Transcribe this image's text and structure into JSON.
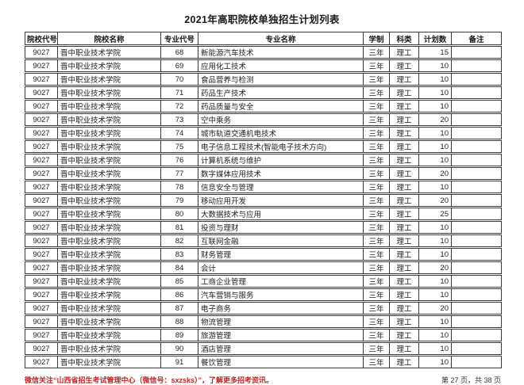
{
  "title": "2021年高职院校单独招生计划列表",
  "table": {
    "headers": [
      "院校代号",
      "院校名称",
      "专业代号",
      "专业名称",
      "学制",
      "科类",
      "计划数",
      "备注"
    ],
    "rows": [
      [
        "9027",
        "晋中职业技术学院",
        "68",
        "新能源汽车技术",
        "三年",
        "理工",
        "15",
        ""
      ],
      [
        "9027",
        "晋中职业技术学院",
        "69",
        "应用化工技术",
        "三年",
        "理工",
        "10",
        ""
      ],
      [
        "9027",
        "晋中职业技术学院",
        "70",
        "食品营养与检测",
        "三年",
        "理工",
        "10",
        ""
      ],
      [
        "9027",
        "晋中职业技术学院",
        "71",
        "药品生产技术",
        "三年",
        "理工",
        "10",
        ""
      ],
      [
        "9027",
        "晋中职业技术学院",
        "72",
        "药品质量与安全",
        "三年",
        "理工",
        "10",
        ""
      ],
      [
        "9027",
        "晋中职业技术学院",
        "73",
        "空中乘务",
        "三年",
        "理工",
        "20",
        ""
      ],
      [
        "9027",
        "晋中职业技术学院",
        "74",
        "城市轨道交通机电技术",
        "三年",
        "理工",
        "10",
        ""
      ],
      [
        "9027",
        "晋中职业技术学院",
        "75",
        "电子信息工程技术(智能电子技术方向)",
        "三年",
        "理工",
        "10",
        ""
      ],
      [
        "9027",
        "晋中职业技术学院",
        "76",
        "计算机系统与维护",
        "三年",
        "理工",
        "10",
        ""
      ],
      [
        "9027",
        "晋中职业技术学院",
        "77",
        "数字媒体应用技术",
        "三年",
        "理工",
        "20",
        ""
      ],
      [
        "9027",
        "晋中职业技术学院",
        "78",
        "信息安全与管理",
        "三年",
        "理工",
        "10",
        ""
      ],
      [
        "9027",
        "晋中职业技术学院",
        "79",
        "移动应用开发",
        "三年",
        "理工",
        "20",
        ""
      ],
      [
        "9027",
        "晋中职业技术学院",
        "80",
        "大数据技术与应用",
        "三年",
        "理工",
        "25",
        ""
      ],
      [
        "9027",
        "晋中职业技术学院",
        "81",
        "投资与理财",
        "三年",
        "理工",
        "10",
        ""
      ],
      [
        "9027",
        "晋中职业技术学院",
        "82",
        "互联网金融",
        "三年",
        "理工",
        "10",
        ""
      ],
      [
        "9027",
        "晋中职业技术学院",
        "83",
        "财务管理",
        "三年",
        "理工",
        "10",
        ""
      ],
      [
        "9027",
        "晋中职业技术学院",
        "84",
        "会计",
        "三年",
        "理工",
        "20",
        ""
      ],
      [
        "9027",
        "晋中职业技术学院",
        "85",
        "工商企业管理",
        "三年",
        "理工",
        "10",
        ""
      ],
      [
        "9027",
        "晋中职业技术学院",
        "86",
        "汽车营销与服务",
        "三年",
        "理工",
        "10",
        ""
      ],
      [
        "9027",
        "晋中职业技术学院",
        "87",
        "电子商务",
        "三年",
        "理工",
        "20",
        ""
      ],
      [
        "9027",
        "晋中职业技术学院",
        "88",
        "物流管理",
        "三年",
        "理工",
        "10",
        ""
      ],
      [
        "9027",
        "晋中职业技术学院",
        "89",
        "旅游管理",
        "三年",
        "理工",
        "10",
        ""
      ],
      [
        "9027",
        "晋中职业技术学院",
        "90",
        "酒店管理",
        "三年",
        "理工",
        "10",
        ""
      ],
      [
        "9027",
        "晋中职业技术学院",
        "91",
        "餐饮管理",
        "三年",
        "理工",
        "10",
        ""
      ]
    ]
  },
  "footer": {
    "notice": "微信关注“山西省招生考试管理中心（微信号：sxzsks）”，了解更多招考资讯。",
    "page_info": "第 27 页，共 38 页"
  },
  "colors": {
    "accent_red": "#c52222",
    "border": "#3a3a3a",
    "text": "#222222"
  }
}
